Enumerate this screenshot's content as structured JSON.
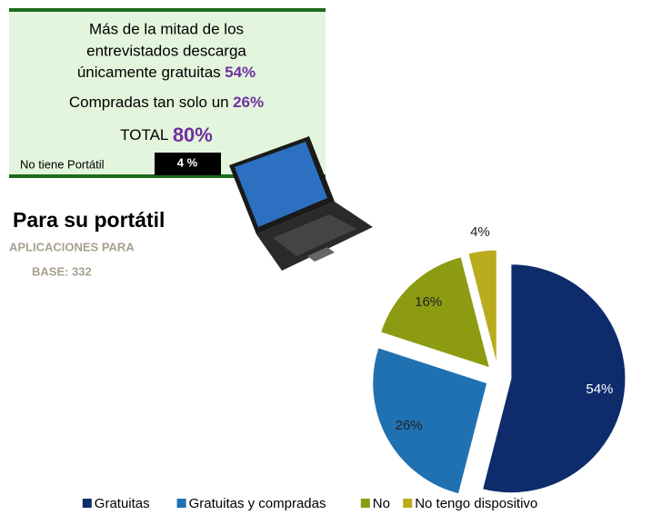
{
  "callout": {
    "line1": "Más de la mitad de los",
    "line2": "entrevistados descarga",
    "line3": "únicamente gratuitas",
    "line3_pct": "54%",
    "line4": "Compradas tan solo un",
    "line4_pct": "26%",
    "total": "TOTAL",
    "total_pct": "80%",
    "no_laptop": "No tiene Portátil",
    "no_laptop_pct": "4 %"
  },
  "heading": {
    "title": "Para su portátil",
    "subtitle": "APLICACIONES PARA",
    "base": "BASE: 332"
  },
  "chart_data": {
    "type": "pie",
    "categories": [
      "Gratuitas",
      "Gratuitas y compradas",
      "No",
      "No tengo dispositivo"
    ],
    "values": [
      54,
      26,
      16,
      4
    ],
    "value_labels": [
      "54%",
      "26%",
      "16%",
      "4%"
    ],
    "colors": [
      "#0e2c6c",
      "#1f71b2",
      "#8d9b12",
      "#b9ab1c"
    ],
    "exploded": true,
    "legend": "bottom"
  }
}
